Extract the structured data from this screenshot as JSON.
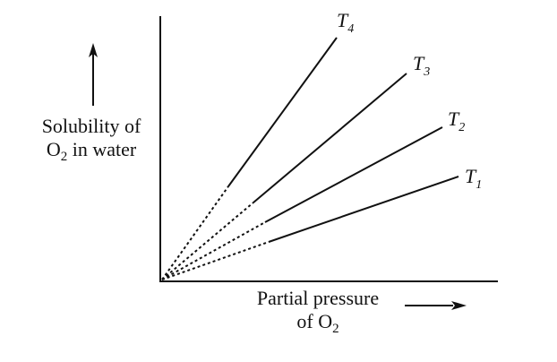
{
  "chart_data": {
    "type": "line",
    "xlabel": "Partial pressure of O2",
    "ylabel": "Solubility of O2 in water",
    "series": [
      {
        "name": "T4",
        "x": [
          0,
          1
        ],
        "y": [
          0,
          2.4
        ]
      },
      {
        "name": "T3",
        "x": [
          0,
          1
        ],
        "y": [
          0,
          1.4
        ]
      },
      {
        "name": "T2",
        "x": [
          0,
          1
        ],
        "y": [
          0,
          0.85
        ]
      },
      {
        "name": "T1",
        "x": [
          0,
          1
        ],
        "y": [
          0,
          0.48
        ]
      }
    ],
    "grid": false
  },
  "labels": {
    "y_line1": "Solubility of",
    "y_line2_pre": "O",
    "y_line2_sub": "2",
    "y_line2_post": " in water",
    "x_line1": "Partial pressure",
    "x_line2_pre": "of O",
    "x_line2_sub": "2"
  },
  "series_labels": [
    {
      "main": "T",
      "sub": "4"
    },
    {
      "main": "T",
      "sub": "3"
    },
    {
      "main": "T",
      "sub": "2"
    },
    {
      "main": "T",
      "sub": "1"
    }
  ]
}
